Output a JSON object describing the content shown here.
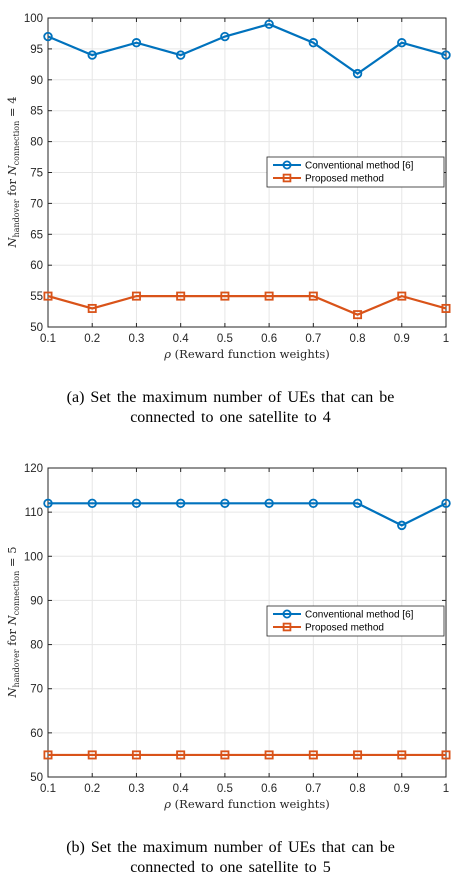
{
  "chart_data": [
    {
      "type": "line",
      "x": [
        0.1,
        0.2,
        0.3,
        0.4,
        0.5,
        0.6,
        0.7,
        0.8,
        0.9,
        1.0
      ],
      "xticks": [
        "0.1",
        "0.2",
        "0.3",
        "0.4",
        "0.5",
        "0.6",
        "0.7",
        "0.8",
        "0.9",
        "1"
      ],
      "yticks": [
        "50",
        "55",
        "60",
        "65",
        "70",
        "75",
        "80",
        "85",
        "90",
        "95",
        "100"
      ],
      "xlim": [
        0.1,
        1.0
      ],
      "ylim": [
        50,
        100
      ],
      "xlabel": "ρ (Reward function weights)",
      "ylabel": "N_handover for N_connection = 4",
      "grid": true,
      "legend": "center-right",
      "series": [
        {
          "name": "Conventional method [6]",
          "color": "#0072BD",
          "marker": "circle",
          "values": [
            97,
            94,
            96,
            94,
            97,
            99,
            96,
            91,
            96,
            94
          ]
        },
        {
          "name": "Proposed method",
          "color": "#D95319",
          "marker": "square",
          "values": [
            55,
            53,
            55,
            55,
            55,
            55,
            55,
            52,
            55,
            53
          ]
        }
      ],
      "caption": "(a) Set the maximum number of UEs that can be connected to one satellite to 4"
    },
    {
      "type": "line",
      "x": [
        0.1,
        0.2,
        0.3,
        0.4,
        0.5,
        0.6,
        0.7,
        0.8,
        0.9,
        1.0
      ],
      "xticks": [
        "0.1",
        "0.2",
        "0.3",
        "0.4",
        "0.5",
        "0.6",
        "0.7",
        "0.8",
        "0.9",
        "1"
      ],
      "yticks": [
        "50",
        "60",
        "70",
        "80",
        "90",
        "100",
        "110",
        "120"
      ],
      "xlim": [
        0.1,
        1.0
      ],
      "ylim": [
        50,
        120
      ],
      "xlabel": "ρ (Reward function weights)",
      "ylabel": "N_handover for N_connection = 5",
      "grid": true,
      "legend": "center-right",
      "series": [
        {
          "name": "Conventional method [6]",
          "color": "#0072BD",
          "marker": "circle",
          "values": [
            112,
            112,
            112,
            112,
            112,
            112,
            112,
            112,
            107,
            112
          ]
        },
        {
          "name": "Proposed method",
          "color": "#D95319",
          "marker": "square",
          "values": [
            55,
            55,
            55,
            55,
            55,
            55,
            55,
            55,
            55,
            55
          ]
        }
      ],
      "caption": "(b) Set the maximum number of UEs that can be connected to one satellite to 5"
    }
  ],
  "captions": {
    "a_line1": "(a)  Set  the  maximum  number  of  UEs  that  can  be",
    "a_line2": "connected  to  one  satellite  to  4",
    "b_line1": "(b)  Set  the  maximum  number  of  UEs  that  can  be",
    "b_line2": "connected  to  one  satellite  to  5"
  },
  "ylabel_parts": {
    "a": {
      "n": "N",
      "sub1": "handover",
      "mid": " for ",
      "n2": "N",
      "sub2": "connection",
      "tail": " = 4"
    },
    "b": {
      "n": "N",
      "sub1": "handover",
      "mid": " for ",
      "n2": "N",
      "sub2": "connection",
      "tail": " = 5"
    }
  }
}
